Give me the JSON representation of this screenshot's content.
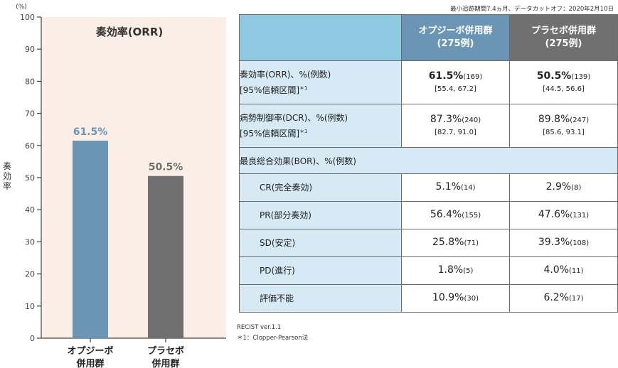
{
  "header_note": "最小追跡期間7.4ヵ月、データカットオフ：2020年2月10日",
  "chart_data": {
    "type": "bar",
    "title": "奏効率(ORR)",
    "ylabel": "奏効率",
    "yunit": "(%)",
    "ylim": [
      0,
      100
    ],
    "yticks": [
      0,
      10,
      20,
      30,
      40,
      50,
      60,
      70,
      80,
      90,
      100
    ],
    "categories": [
      [
        "オプジーボ",
        "併用群"
      ],
      [
        "プラセボ",
        "併用群"
      ]
    ],
    "values": [
      61.5,
      50.5
    ],
    "value_labels": [
      "61.5%",
      "50.5%"
    ],
    "colors": {
      "bar1": "#6b95b5",
      "bar2": "#707070",
      "panel_bg": "#fbeee6",
      "label1": "#6b95b5",
      "label2": "#707070"
    }
  },
  "table": {
    "headers": {
      "opdivo": [
        "オプジーボ併用群",
        "(275例)"
      ],
      "placebo": [
        "プラセボ併用群",
        "(275例)"
      ]
    },
    "orr": {
      "label": [
        "奏効率(ORR)、%(例数)",
        "[95%信頼区間]"
      ],
      "mark": "＊1",
      "opdivo": {
        "pct": "61.5%",
        "n": "(169)",
        "ci": "[55.4, 67.2]"
      },
      "placebo": {
        "pct": "50.5%",
        "n": "(139)",
        "ci": "[44.5, 56.6]"
      }
    },
    "dcr": {
      "label": [
        "病勢制御率(DCR)、%(例数)",
        "[95%信頼区間]"
      ],
      "mark": "＊1",
      "opdivo": {
        "pct": "87.3%",
        "n": "(240)",
        "ci": "[82.7, 91.0]"
      },
      "placebo": {
        "pct": "89.8%",
        "n": "(247)",
        "ci": "[85.6, 93.1]"
      }
    },
    "bor_label": "最良総合効果(BOR)、%(例数)",
    "bor_rows": [
      {
        "label": "CR(完全奏効)",
        "opdivo": {
          "pct": "5.1%",
          "n": "(14)"
        },
        "placebo": {
          "pct": "2.9%",
          "n": "(8)"
        }
      },
      {
        "label": "PR(部分奏効)",
        "opdivo": {
          "pct": "56.4%",
          "n": "(155)"
        },
        "placebo": {
          "pct": "47.6%",
          "n": "(131)"
        }
      },
      {
        "label": "SD(安定)",
        "opdivo": {
          "pct": "25.8%",
          "n": "(71)"
        },
        "placebo": {
          "pct": "39.3%",
          "n": "(108)"
        }
      },
      {
        "label": "PD(進行)",
        "opdivo": {
          "pct": "1.8%",
          "n": "(5)"
        },
        "placebo": {
          "pct": "4.0%",
          "n": "(11)"
        }
      },
      {
        "label": "評価不能",
        "opdivo": {
          "pct": "10.9%",
          "n": "(30)"
        },
        "placebo": {
          "pct": "6.2%",
          "n": "(17)"
        }
      }
    ]
  },
  "footnotes": [
    "RECIST ver.1.1",
    "＊1：Clopper-Pearson法"
  ]
}
